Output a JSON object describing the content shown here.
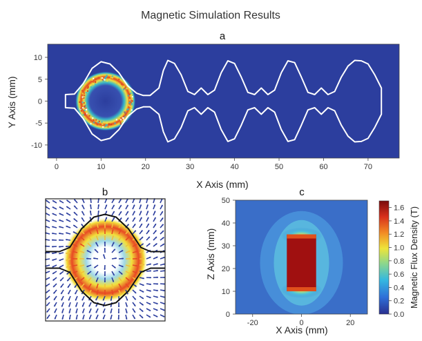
{
  "figure": {
    "title": "Magnetic Simulation Results"
  },
  "colors": {
    "field_low": "#2c3e9e",
    "field_mid": "#35b7c9",
    "field_high": "#e8e53a",
    "field_peak": "#d63b1c",
    "outline": "#ffffff"
  },
  "chart_data": [
    {
      "id": "a",
      "type": "heatmap",
      "title": "a",
      "xlabel": "X Axis (mm)",
      "ylabel": "Y Axis (mm)",
      "xlim": [
        -2,
        77
      ],
      "ylim": [
        -13,
        13
      ],
      "xticks": [
        0,
        10,
        20,
        30,
        40,
        50,
        60,
        70
      ],
      "yticks": [
        10,
        5,
        0,
        -5,
        -10
      ],
      "ring": {
        "center": [
          11,
          0
        ],
        "radius": 6.5
      },
      "outline_profile": {
        "x": [
          2,
          4,
          6,
          8,
          10,
          12,
          14,
          16,
          18,
          19.5,
          21,
          23,
          24,
          25,
          26.5,
          28,
          29.5,
          31,
          32.5,
          34,
          35.5,
          37,
          38.5,
          40,
          41.5,
          43,
          44.5,
          46,
          47.5,
          49,
          50.5,
          52,
          53.5,
          55,
          56.5,
          58,
          59.5,
          61,
          62.5,
          64,
          65.5,
          67,
          68.5,
          70,
          71.5,
          73
        ],
        "half_height": [
          1.5,
          1.6,
          4,
          7.5,
          9,
          8.5,
          6.5,
          3.5,
          1.8,
          1.3,
          1.3,
          3,
          7,
          9.3,
          8.6,
          6,
          2.2,
          1.5,
          3,
          1.5,
          2.5,
          6.5,
          9.2,
          8.6,
          5.5,
          2,
          1.5,
          3,
          1.5,
          2.5,
          6.5,
          9.2,
          8.8,
          5.5,
          2,
          1.5,
          3,
          1.5,
          2.2,
          5.5,
          8,
          9.3,
          9.2,
          8.5,
          6,
          3
        ]
      }
    },
    {
      "id": "b",
      "type": "scatter",
      "title": "b",
      "subtype": "vector-field"
    },
    {
      "id": "c",
      "type": "heatmap",
      "title": "c",
      "xlabel": "X Axis (mm)",
      "ylabel": "Z Axis (mm)",
      "xlim": [
        -27,
        27
      ],
      "ylim": [
        0,
        50
      ],
      "xticks": [
        -20,
        0,
        20
      ],
      "yticks": [
        50,
        40,
        30,
        20,
        10,
        0
      ],
      "magnet": {
        "x": [
          -6,
          6
        ],
        "z": [
          10,
          35
        ]
      },
      "colorbar": {
        "label": "Magnetic Flux Density (T)",
        "range": [
          0,
          1.7
        ],
        "ticks": [
          "1.6",
          "1.4",
          "1.2",
          "1.0",
          "0.8",
          "0.6",
          "0.4",
          "0.2",
          "0.0"
        ],
        "tick_values": [
          1.6,
          1.4,
          1.2,
          1.0,
          0.8,
          0.6,
          0.4,
          0.2,
          0.0
        ]
      }
    }
  ]
}
